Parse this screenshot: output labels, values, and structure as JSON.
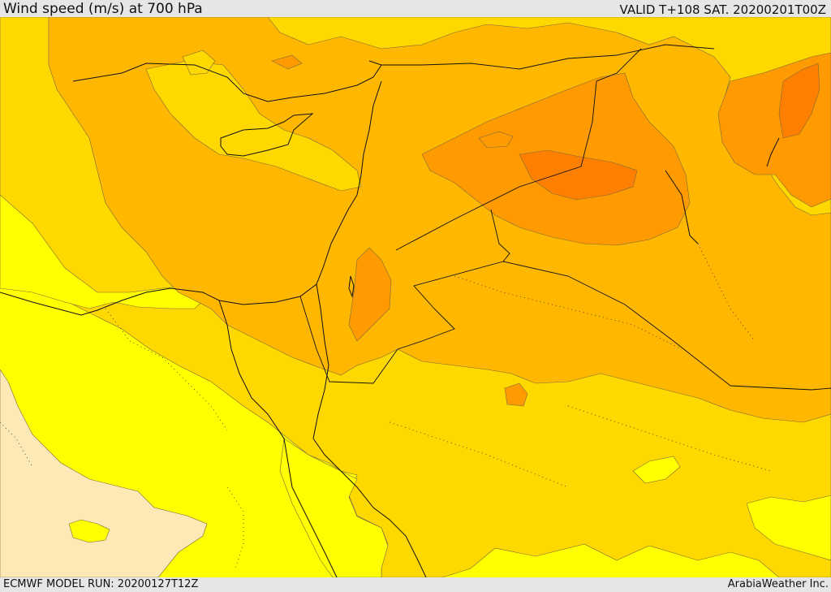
{
  "header": {
    "title": "Wind speed (m/s) at 700 hPa",
    "valid": "VALID T+108 SAT. 20200201T00Z"
  },
  "footer": {
    "model_run": "ECMWF MODEL RUN: 20200127T12Z",
    "credit": "ArabiaWeather Inc."
  },
  "colors": {
    "band_low": "#fde9b6",
    "band_1": "#ffff00",
    "band_2": "#ffd800",
    "band_3": "#ffb700",
    "band_4": "#ff9a00",
    "band_5": "#ff7f00"
  }
}
